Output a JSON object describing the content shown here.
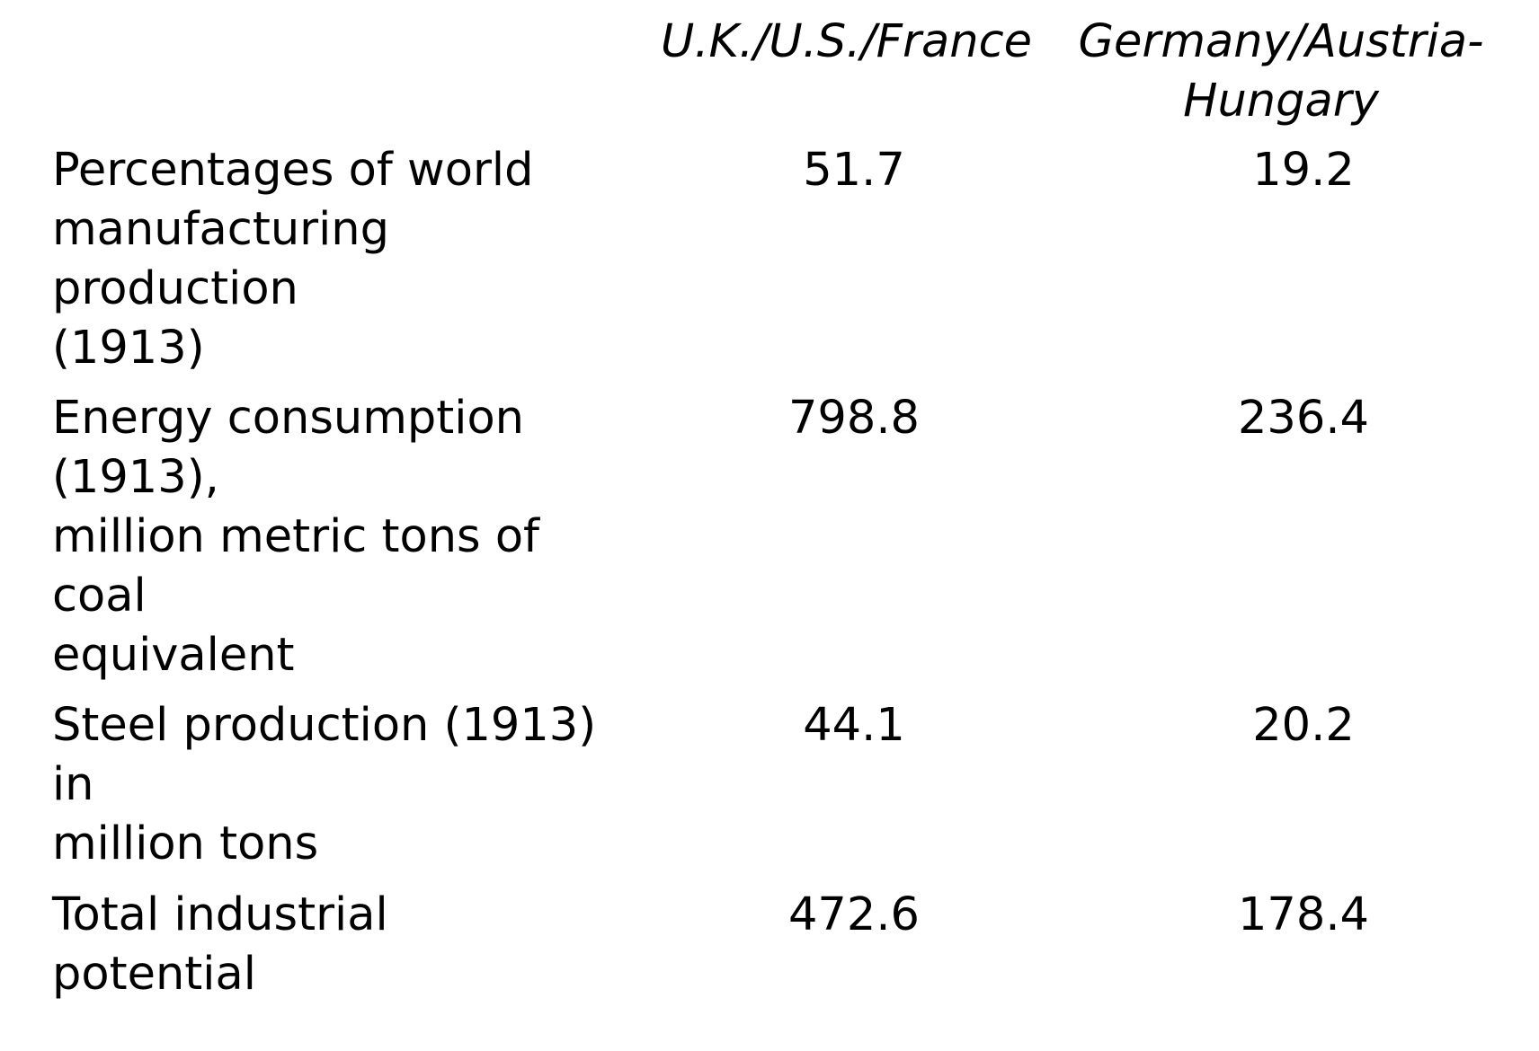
{
  "table": {
    "columns": [
      "U.K./U.S./France",
      "Germany/Austria-\nHungary"
    ],
    "rows": [
      {
        "label": "Percentages of world\nmanufacturing\nproduction\n(1913)",
        "values": [
          "51.7",
          "19.2"
        ]
      },
      {
        "label": "Energy consumption\n(1913),\nmillion metric tons of\ncoal\nequivalent",
        "values": [
          "798.8",
          "236.4"
        ]
      },
      {
        "label": "Steel production (1913)\nin\nmillion tons",
        "values": [
          "44.1",
          "20.2"
        ]
      },
      {
        "label": "Total industrial\npotential",
        "values": [
          "472.6",
          "178.4"
        ]
      }
    ]
  }
}
